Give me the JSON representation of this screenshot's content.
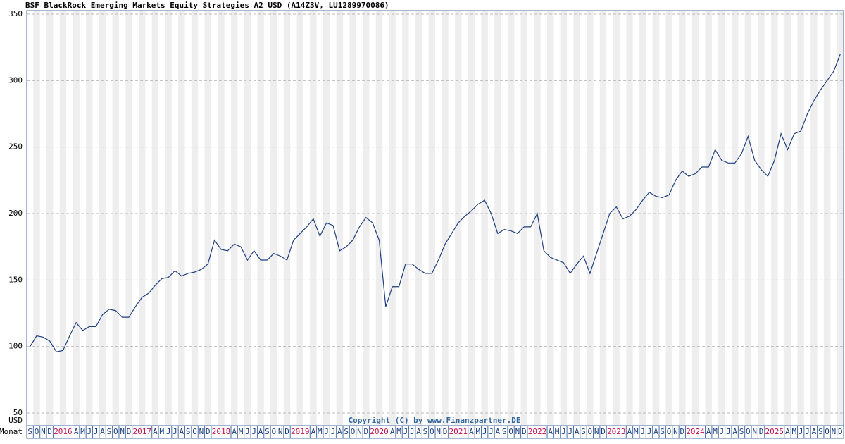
{
  "chart_data": {
    "type": "line",
    "title": "BSF BlackRock Emerging Markets Equity Strategies A2 USD (A14Z3V, LU1289970086)",
    "y_unit": "USD",
    "x_axis_label": "Monat",
    "copyright": "Copyright (C) by www.Finanzpartner.DE",
    "categories": [
      "S",
      "O",
      "N",
      "D",
      "2016",
      null,
      null,
      "A",
      "M",
      "J",
      "J",
      "A",
      "S",
      "O",
      "N",
      "D",
      "2017",
      null,
      null,
      "A",
      "M",
      "J",
      "J",
      "A",
      "S",
      "O",
      "N",
      "D",
      "2018",
      null,
      null,
      "A",
      "M",
      "J",
      "J",
      "A",
      "S",
      "O",
      "N",
      "D",
      "2019",
      null,
      null,
      "A",
      "M",
      "J",
      "J",
      "A",
      "S",
      "O",
      "N",
      "D",
      "2020",
      null,
      null,
      "A",
      "M",
      "J",
      "J",
      "A",
      "S",
      "O",
      "N",
      "D",
      "2021",
      null,
      null,
      "A",
      "M",
      "J",
      "J",
      "A",
      "S",
      "O",
      "N",
      "D",
      "2022",
      null,
      null,
      "A",
      "M",
      "J",
      "J",
      "A",
      "S",
      "O",
      "N",
      "D",
      "2023",
      null,
      null,
      "A",
      "M",
      "J",
      "J",
      "A",
      "S",
      "O",
      "N",
      "D",
      "2024",
      null,
      null,
      "A",
      "M",
      "J",
      "J",
      "A",
      "S",
      "O",
      "N",
      "D",
      "2025",
      null,
      null,
      "A",
      "M",
      "J",
      "J",
      "A",
      "S",
      "O",
      "N",
      "D"
    ],
    "series": [
      {
        "name": "BSF BlackRock Emerging Markets Equity Strategies A2 USD",
        "color": "#1f3f7f",
        "values": [
          100,
          108,
          107,
          104,
          96,
          97,
          108,
          118,
          112,
          115,
          115,
          124,
          128,
          127,
          122,
          122,
          130,
          137,
          140,
          146,
          151,
          152,
          157,
          153,
          155,
          156,
          158,
          162,
          180,
          173,
          172,
          177,
          175,
          165,
          172,
          165,
          165,
          170,
          168,
          165,
          180,
          185,
          190,
          196,
          183,
          193,
          191,
          172,
          175,
          180,
          190,
          197,
          193,
          180,
          130,
          145,
          145,
          162,
          162,
          158,
          155,
          155,
          165,
          177,
          185,
          193,
          198,
          202,
          207,
          210,
          200,
          185,
          188,
          187,
          185,
          190,
          190,
          200,
          172,
          167,
          165,
          163,
          155,
          162,
          168,
          155,
          170,
          185,
          200,
          205,
          196,
          198,
          203,
          210,
          216,
          213,
          212,
          214,
          225,
          232,
          228,
          230,
          235,
          235,
          248,
          240,
          238,
          238,
          245,
          258,
          240,
          233,
          228,
          240,
          260,
          248,
          260,
          262,
          275,
          285,
          293,
          300,
          307,
          320
        ]
      }
    ],
    "ylim": [
      50,
      350
    ],
    "yticks": [
      50,
      100,
      150,
      200,
      250,
      300,
      350
    ],
    "grid": true
  }
}
